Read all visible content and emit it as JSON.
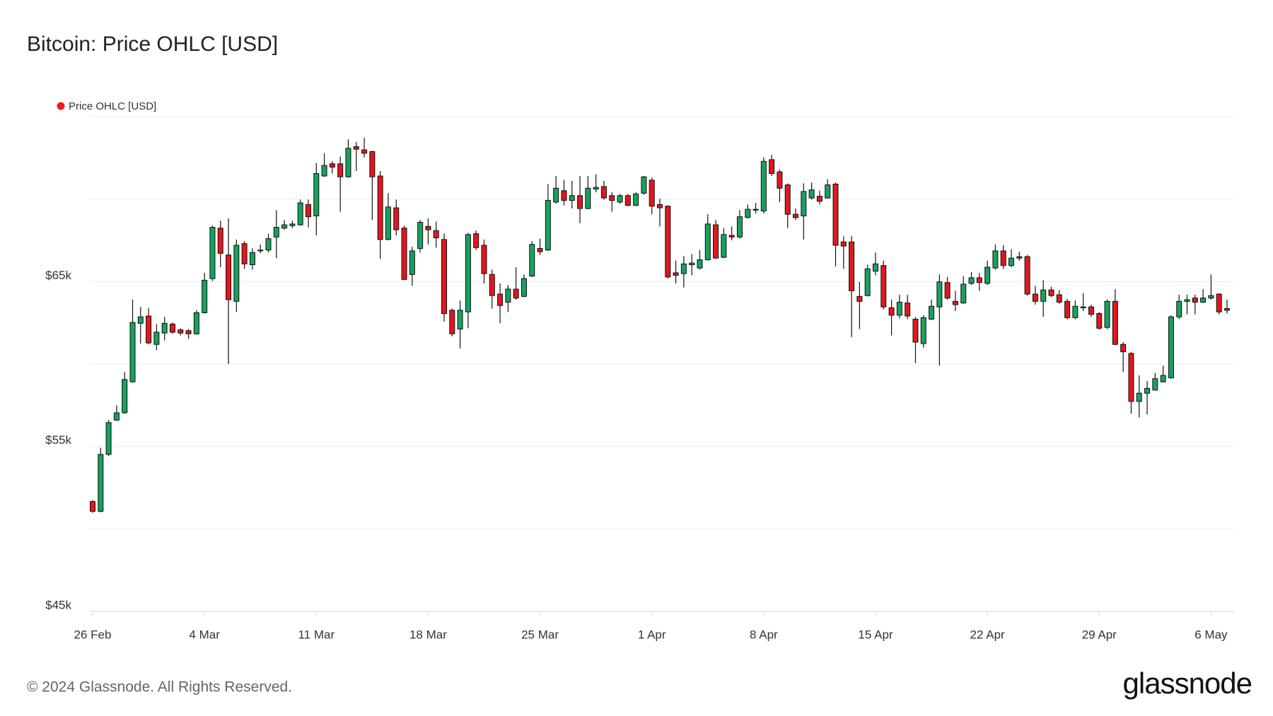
{
  "chart_data": {
    "type": "candlestick",
    "title": "Bitcoin: Price OHLC [USD]",
    "categories": [
      "26 Feb",
      null,
      null,
      null,
      null,
      null,
      null,
      null,
      null,
      null,
      null,
      null,
      null,
      null,
      "4 Mar",
      null,
      null,
      null,
      null,
      null,
      null,
      null,
      null,
      null,
      null,
      null,
      null,
      null,
      "11 Mar",
      null,
      null,
      null,
      null,
      null,
      null,
      null,
      null,
      null,
      null,
      null,
      null,
      null,
      "18 Mar",
      null,
      null,
      null,
      null,
      null,
      null,
      null,
      null,
      null,
      null,
      null,
      null,
      null,
      "25 Mar",
      null,
      null,
      null,
      null,
      null,
      null,
      null,
      null,
      null,
      null,
      null,
      null,
      null,
      "1 Apr",
      null,
      null,
      null,
      null,
      null,
      null,
      null,
      null,
      null,
      null,
      null,
      null,
      null,
      "8 Apr",
      null,
      null,
      null,
      null,
      null,
      null,
      null,
      null,
      null,
      null,
      null,
      null,
      null,
      "15 Apr",
      null,
      null,
      null,
      null,
      null,
      null,
      null,
      null,
      null,
      null,
      null,
      null,
      null,
      "22 Apr",
      null,
      null,
      null,
      null,
      null,
      null,
      null,
      null,
      null,
      null,
      null,
      null,
      null,
      "29 Apr",
      null,
      null,
      null,
      null,
      null,
      null,
      null,
      null,
      null,
      null,
      null,
      null,
      null,
      "6 May",
      null,
      null
    ],
    "series": [
      {
        "name": "Price OHLC [USD]",
        "color": "#ee1c25",
        "open": [
          51660,
          51070,
          54520,
          56600,
          57040,
          58920,
          62470,
          62910,
          61190,
          61880,
          62420,
          62070,
          62020,
          61830,
          63110,
          65180,
          68240,
          66610,
          63800,
          67300,
          66020,
          66860,
          66910,
          67700,
          68240,
          68390,
          68440,
          69670,
          68980,
          71400,
          72140,
          72140,
          71350,
          73180,
          72980,
          72880,
          71400,
          67550,
          69470,
          68240,
          65430,
          67010,
          68340,
          68090,
          67550,
          63260,
          62120,
          63160,
          67900,
          67200,
          65430,
          64240,
          63750,
          64540,
          64100,
          65330,
          67010,
          66910,
          69820,
          70510,
          69920,
          70210,
          69430,
          70610,
          70760,
          70210,
          69820,
          70210,
          69620,
          70360,
          71150,
          69670,
          69570,
          65530,
          65480,
          66020,
          65820,
          66320,
          68440,
          66470,
          67800,
          67700,
          68880,
          69330,
          69280,
          72390,
          71650,
          70860,
          69080,
          68980,
          70070,
          70170,
          70070,
          70910,
          67400,
          67400,
          64100,
          64150,
          65630,
          65970,
          63410,
          62960,
          63700,
          62720,
          61240,
          62720,
          63460,
          64940,
          63800,
          63700,
          64890,
          65230,
          64890,
          65820,
          66860,
          65970,
          66510,
          66510,
          64240,
          63800,
          64490,
          64200,
          63800,
          62810,
          63410,
          63460,
          63060,
          62220,
          63800,
          61190,
          60640,
          57730,
          58230,
          58420,
          58920,
          59160,
          62860,
          63800,
          64000,
          63750,
          64000,
          64240,
          63360
        ],
        "high": [
          51760,
          54920,
          56600,
          57490,
          59510,
          63900,
          63460,
          63410,
          62420,
          62860,
          62520,
          62170,
          62120,
          63260,
          65530,
          68390,
          68690,
          68830,
          67550,
          67450,
          67010,
          67250,
          67900,
          69330,
          68730,
          68690,
          69970,
          69970,
          72190,
          72780,
          72290,
          72580,
          73620,
          73470,
          73720,
          72930,
          71700,
          70360,
          69970,
          68390,
          67110,
          68730,
          68830,
          68640,
          67900,
          63360,
          63850,
          67950,
          68090,
          67550,
          65720,
          64890,
          64790,
          65870,
          65430,
          67450,
          67600,
          70910,
          71400,
          71150,
          71100,
          71400,
          71400,
          71500,
          71100,
          70410,
          70310,
          70310,
          70410,
          71400,
          71300,
          70020,
          69620,
          66270,
          66560,
          66660,
          66910,
          69080,
          68730,
          68240,
          68340,
          69330,
          69670,
          69770,
          72530,
          72680,
          71790,
          70950,
          69430,
          70950,
          71000,
          70510,
          71200,
          71000,
          67750,
          67750,
          64980,
          66020,
          66760,
          66270,
          63900,
          64200,
          64200,
          62860,
          62960,
          63900,
          65430,
          65280,
          64440,
          65330,
          65580,
          65530,
          66270,
          67250,
          67200,
          66960,
          66810,
          66610,
          64740,
          65080,
          64690,
          64490,
          63950,
          63850,
          64290,
          63600,
          63160,
          63900,
          64540,
          61330,
          60740,
          59310,
          58970,
          59460,
          59900,
          62960,
          64200,
          64200,
          64200,
          64540,
          65430,
          64290,
          63900
        ],
        "low": [
          50970,
          51000,
          54430,
          56550,
          56990,
          58870,
          61240,
          61190,
          60840,
          61430,
          61830,
          61730,
          61530,
          61780,
          63060,
          65030,
          65870,
          60000,
          63160,
          65770,
          65720,
          66710,
          66760,
          66420,
          68140,
          68240,
          68390,
          68290,
          67800,
          71350,
          71550,
          69230,
          71300,
          71700,
          72530,
          68730,
          66370,
          67500,
          67800,
          65080,
          64740,
          66760,
          67250,
          67060,
          62570,
          61680,
          60940,
          62170,
          66910,
          64890,
          63360,
          62470,
          63160,
          63900,
          64050,
          65280,
          66610,
          66860,
          69720,
          69620,
          69430,
          68540,
          69380,
          70410,
          69970,
          69230,
          69720,
          69570,
          69570,
          70260,
          69080,
          68340,
          65180,
          64890,
          64640,
          65380,
          65720,
          66270,
          66370,
          66420,
          67500,
          67600,
          68830,
          69130,
          69130,
          71400,
          69820,
          68240,
          68730,
          67550,
          69970,
          69670,
          70020,
          65920,
          65770,
          61630,
          62120,
          64100,
          65380,
          63310,
          61730,
          62760,
          62720,
          60050,
          60990,
          62670,
          59900,
          63900,
          63210,
          63650,
          64790,
          64440,
          64790,
          65720,
          65770,
          65870,
          66270,
          64150,
          63600,
          62860,
          64050,
          63650,
          62720,
          62720,
          63210,
          62860,
          62070,
          62120,
          61140,
          59510,
          56990,
          56750,
          56940,
          58420,
          58870,
          59110,
          62720,
          63010,
          63010,
          63700,
          63900,
          63010,
          63060
        ],
        "close": [
          51070,
          54520,
          56450,
          57040,
          59060,
          62520,
          62860,
          61280,
          61930,
          62470,
          61930,
          61880,
          61830,
          63110,
          65080,
          68290,
          66710,
          63900,
          67200,
          66070,
          66760,
          66910,
          67600,
          68290,
          68440,
          68490,
          69770,
          68930,
          71550,
          72040,
          71940,
          71350,
          73080,
          73030,
          72780,
          71350,
          67550,
          69520,
          68140,
          65130,
          66860,
          68590,
          68140,
          67650,
          63060,
          61830,
          63260,
          67850,
          67060,
          65480,
          64150,
          63550,
          64540,
          64000,
          65180,
          67250,
          66810,
          69920,
          70660,
          69920,
          70210,
          69430,
          70660,
          70710,
          70070,
          69920,
          70210,
          69620,
          70310,
          71350,
          69570,
          69470,
          65280,
          65380,
          66070,
          66120,
          66320,
          68490,
          66420,
          67850,
          67700,
          68930,
          69380,
          69380,
          72290,
          71550,
          70660,
          69080,
          68880,
          70460,
          70560,
          69870,
          70860,
          67200,
          67150,
          64440,
          63800,
          65770,
          66070,
          63460,
          62960,
          63750,
          62910,
          61330,
          62810,
          63500,
          64980,
          64000,
          63600,
          64840,
          65230,
          64940,
          65870,
          66860,
          65970,
          66420,
          66420,
          64240,
          63800,
          64490,
          64150,
          63750,
          62810,
          63500,
          63460,
          63010,
          62170,
          63800,
          61190,
          60740,
          57730,
          58230,
          58520,
          59110,
          59310,
          62860,
          63800,
          63900,
          63750,
          64000,
          64150,
          63160,
          63260
        ]
      }
    ],
    "up_color": "#18a05e",
    "down_color": "#e3161d",
    "ylim": [
      45000,
      75000
    ],
    "yticks": [
      {
        "value": 45000,
        "label": "$45k"
      },
      {
        "value": 55000,
        "label": "$55k"
      },
      {
        "value": 65000,
        "label": "$65k"
      }
    ],
    "ygrid": [
      45000,
      50000,
      55000,
      60000,
      65000,
      70000,
      75000
    ],
    "grid": true
  },
  "footer": {
    "copyright": "© 2024 Glassnode. All Rights Reserved.",
    "logo": "glassnode"
  }
}
